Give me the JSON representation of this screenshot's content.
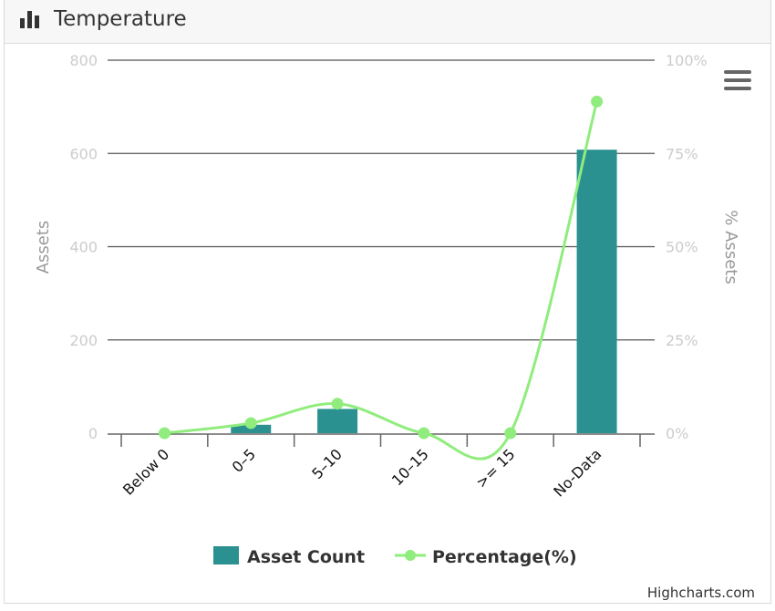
{
  "header": {
    "title": "Temperature",
    "icon": "bar-chart-icon"
  },
  "menu": {
    "icon": "hamburger-menu-icon"
  },
  "credits": {
    "label": "Highcharts.com"
  },
  "colors": {
    "bar": "#2a9090",
    "line": "#90ed7d",
    "axis_labels": "#cccccc",
    "axis_title": "#999999",
    "grid": "#555555"
  },
  "chart_data": {
    "type": "bar",
    "title": "Temperature",
    "categories": [
      "Below 0",
      "0–5",
      "5–10",
      "10–15",
      ">= 15",
      "No-Data"
    ],
    "series": [
      {
        "name": "Asset Count",
        "type": "bar",
        "axis": "left",
        "values": [
          0,
          18,
          52,
          0,
          0,
          608
        ]
      },
      {
        "name": "Percentage(%)",
        "type": "line",
        "axis": "right",
        "values": [
          0,
          2.7,
          7.9,
          0,
          0,
          88.9
        ]
      }
    ],
    "y_left": {
      "label": "Assets",
      "range": [
        0,
        800
      ],
      "ticks": [
        "0",
        "200",
        "400",
        "600",
        "800"
      ]
    },
    "y_right": {
      "label": "% Assets",
      "range": [
        0,
        100
      ],
      "ticks": [
        "0%",
        "25%",
        "50%",
        "75%",
        "100%"
      ]
    },
    "grid": true,
    "legend_position": "bottom-center"
  }
}
